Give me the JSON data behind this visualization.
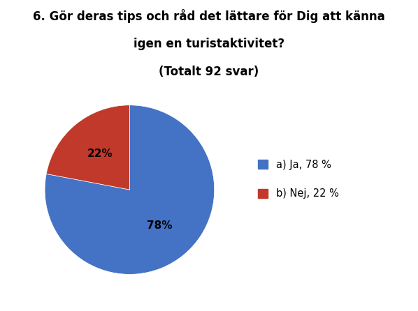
{
  "title_line1": "6. Gör deras tips och råd det lättare för Dig att känna",
  "title_line2": "igen en turistaktivitet?",
  "title_line3": "(Totalt 92 svar)",
  "slices": [
    78,
    22
  ],
  "colors": [
    "#4472C4",
    "#C0392B"
  ],
  "labels_on_pie": [
    "78%",
    "22%"
  ],
  "legend_labels": [
    "a) Ja, 78 %",
    "b) Nej, 22 %"
  ],
  "start_angle": 90,
  "background_color": "#FFFFFF",
  "label_fontsize": 11,
  "title_fontsize": 12,
  "legend_fontsize": 10.5
}
